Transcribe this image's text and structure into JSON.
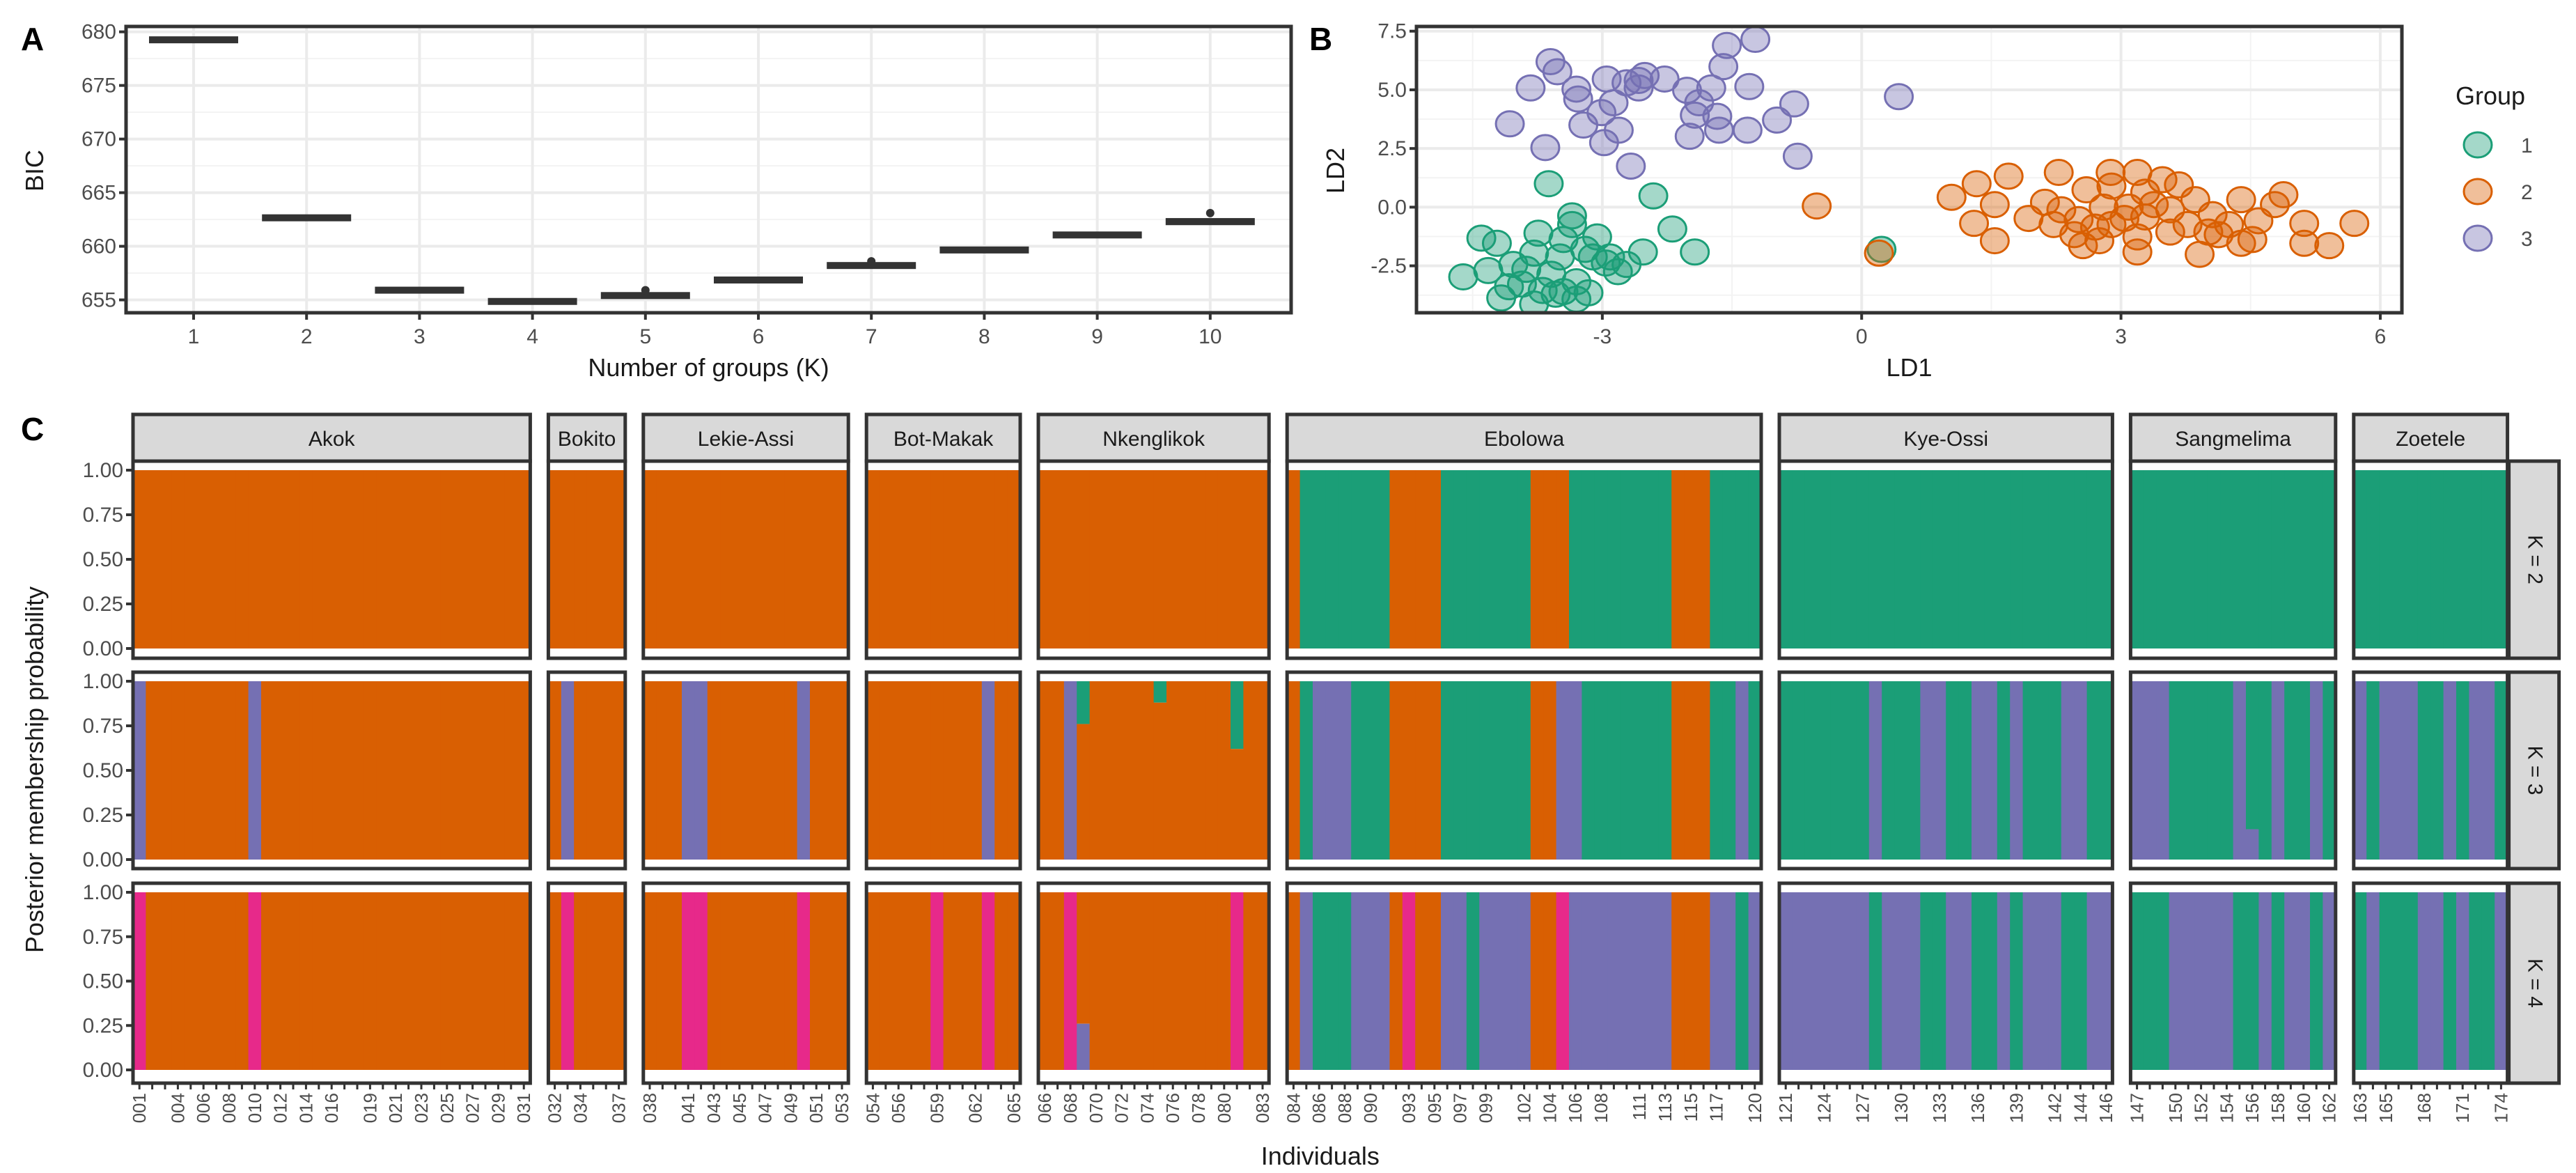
{
  "colors": {
    "c1": "#1B9E77",
    "c2": "#D95F02",
    "c3": "#7570B3",
    "c4": "#E7298A",
    "strip": "#D9D9D9",
    "frame": "#333333",
    "grid": "#EBEBEB"
  },
  "chart_data": [
    {
      "type": "box",
      "panel_label": "A",
      "xlabel": "Number of groups (K)",
      "ylabel": "BIC",
      "ylim": [
        653.8,
        680.5
      ],
      "yticks": [
        655,
        660,
        665,
        670,
        675,
        680
      ],
      "xticks": [
        "1",
        "2",
        "3",
        "4",
        "5",
        "6",
        "7",
        "8",
        "9",
        "10"
      ],
      "grid": true,
      "boxes": [
        {
          "k": "1",
          "median": 679.3,
          "q1": 679.15,
          "q3": 679.45,
          "outliers": []
        },
        {
          "k": "2",
          "median": 662.7,
          "q1": 662.55,
          "q3": 662.85,
          "outliers": []
        },
        {
          "k": "3",
          "median": 655.95,
          "q1": 655.8,
          "q3": 656.1,
          "outliers": []
        },
        {
          "k": "4",
          "median": 654.9,
          "q1": 654.75,
          "q3": 655.05,
          "outliers": []
        },
        {
          "k": "5",
          "median": 655.4,
          "q1": 655.25,
          "q3": 655.6,
          "outliers": [
            655.9
          ]
        },
        {
          "k": "6",
          "median": 656.9,
          "q1": 656.75,
          "q3": 657.05,
          "outliers": []
        },
        {
          "k": "7",
          "median": 658.2,
          "q1": 658.05,
          "q3": 658.4,
          "outliers": [
            658.6
          ]
        },
        {
          "k": "8",
          "median": 659.7,
          "q1": 659.55,
          "q3": 659.85,
          "outliers": []
        },
        {
          "k": "9",
          "median": 661.1,
          "q1": 660.95,
          "q3": 661.25,
          "outliers": []
        },
        {
          "k": "10",
          "median": 662.3,
          "q1": 662.1,
          "q3": 662.5,
          "outliers": [
            663.1
          ]
        }
      ]
    },
    {
      "type": "scatter",
      "panel_label": "B",
      "xlabel": "LD1",
      "ylabel": "LD2",
      "xlim": [
        -5.15,
        6.25
      ],
      "ylim": [
        -4.5,
        7.7
      ],
      "xticks": [
        {
          "v": -3,
          "label": "-3"
        },
        {
          "v": 0,
          "label": "0"
        },
        {
          "v": 3,
          "label": "3"
        },
        {
          "v": 6,
          "label": "6"
        }
      ],
      "yticks": [
        {
          "v": -2.5,
          "label": "-2.5"
        },
        {
          "v": 0,
          "label": "0.0"
        },
        {
          "v": 2.5,
          "label": "2.5"
        },
        {
          "v": 5,
          "label": "5.0"
        },
        {
          "v": 7.5,
          "label": "7.5"
        }
      ],
      "grid": true,
      "legend": {
        "title": "Group",
        "position": "right"
      },
      "groups": [
        {
          "name": "1",
          "color": "#1B9E77",
          "points": [
            [
              -3.62,
              1.0
            ],
            [
              -2.41,
              0.48
            ],
            [
              -2.19,
              -0.93
            ],
            [
              -1.93,
              -1.91
            ],
            [
              -4.4,
              -1.32
            ],
            [
              -4.22,
              -1.54
            ],
            [
              -4.61,
              -2.97
            ],
            [
              -4.17,
              -3.87
            ],
            [
              -3.74,
              -1.11
            ],
            [
              -3.35,
              -0.37
            ],
            [
              -3.35,
              -0.74
            ],
            [
              -3.06,
              -1.27
            ],
            [
              -3.79,
              -1.96
            ],
            [
              -3.49,
              -2.12
            ],
            [
              -4.03,
              -2.44
            ],
            [
              -4.32,
              -2.7
            ],
            [
              -3.93,
              -3.28
            ],
            [
              -3.69,
              -3.55
            ],
            [
              -3.45,
              -3.6
            ],
            [
              -3.16,
              -3.65
            ],
            [
              -3.3,
              -3.18
            ],
            [
              -2.91,
              -2.12
            ],
            [
              -2.82,
              -2.75
            ],
            [
              -2.72,
              -2.44
            ],
            [
              -2.53,
              -1.91
            ],
            [
              -3.11,
              -2.12
            ],
            [
              -3.59,
              -2.86
            ],
            [
              -3.2,
              -1.8
            ],
            [
              -3.45,
              -1.38
            ],
            [
              -3.79,
              -4.13
            ],
            [
              -2.96,
              -2.38
            ],
            [
              -4.08,
              -3.39
            ],
            [
              -3.3,
              -3.92
            ],
            [
              0.23,
              -1.8
            ],
            [
              -3.54,
              -3.71
            ],
            [
              -3.88,
              -2.65
            ]
          ]
        },
        {
          "name": "2",
          "color": "#D95F02",
          "points": [
            [
              -0.52,
              0.05
            ],
            [
              0.2,
              -1.96
            ],
            [
              1.04,
              0.42
            ],
            [
              1.33,
              1.0
            ],
            [
              1.7,
              1.32
            ],
            [
              2.28,
              1.48
            ],
            [
              2.88,
              1.48
            ],
            [
              3.19,
              1.48
            ],
            [
              3.48,
              1.17
            ],
            [
              3.67,
              0.95
            ],
            [
              4.88,
              0.53
            ],
            [
              5.7,
              -0.69
            ],
            [
              5.41,
              -1.64
            ],
            [
              5.12,
              -1.54
            ],
            [
              5.12,
              -0.69
            ],
            [
              4.59,
              -0.58
            ],
            [
              4.39,
              0.32
            ],
            [
              4.39,
              -1.54
            ],
            [
              3.91,
              -2.01
            ],
            [
              4.01,
              -1.06
            ],
            [
              3.19,
              -1.91
            ],
            [
              2.75,
              -1.43
            ],
            [
              2.46,
              -1.17
            ],
            [
              1.93,
              -0.48
            ],
            [
              1.54,
              -1.43
            ],
            [
              1.3,
              -0.69
            ],
            [
              1.54,
              0.11
            ],
            [
              2.12,
              0.21
            ],
            [
              2.6,
              0.74
            ],
            [
              2.8,
              0.0
            ],
            [
              3.09,
              0.0
            ],
            [
              3.28,
              -0.42
            ],
            [
              3.57,
              -0.11
            ],
            [
              3.77,
              -0.74
            ],
            [
              4.06,
              -0.32
            ],
            [
              2.89,
              -0.74
            ],
            [
              2.51,
              -0.53
            ],
            [
              2.31,
              -0.11
            ],
            [
              3.19,
              -1.27
            ],
            [
              3.57,
              -1.06
            ],
            [
              4.25,
              -0.74
            ],
            [
              4.78,
              0.11
            ],
            [
              3.28,
              0.64
            ],
            [
              2.89,
              0.9
            ],
            [
              2.7,
              -0.85
            ],
            [
              2.22,
              -0.74
            ],
            [
              3.86,
              0.32
            ],
            [
              4.52,
              -1.38
            ],
            [
              4.13,
              -1.17
            ],
            [
              3.38,
              0.11
            ],
            [
              2.56,
              -1.64
            ],
            [
              3.04,
              -0.48
            ]
          ]
        },
        {
          "name": "3",
          "color": "#7570B3",
          "points": [
            [
              -3.6,
              6.2
            ],
            [
              -3.52,
              5.77
            ],
            [
              -3.83,
              5.08
            ],
            [
              -4.07,
              3.55
            ],
            [
              -3.66,
              2.54
            ],
            [
              -3.3,
              5.03
            ],
            [
              -3.28,
              4.61
            ],
            [
              -2.95,
              5.46
            ],
            [
              -2.87,
              4.45
            ],
            [
              -3.01,
              4.03
            ],
            [
              -3.22,
              3.5
            ],
            [
              -2.81,
              3.28
            ],
            [
              -2.98,
              2.75
            ],
            [
              -2.67,
              1.75
            ],
            [
              -2.58,
              5.4
            ],
            [
              -2.51,
              5.61
            ],
            [
              -2.28,
              5.46
            ],
            [
              -2.58,
              5.08
            ],
            [
              -2.02,
              4.98
            ],
            [
              -1.74,
              5.08
            ],
            [
              -1.88,
              4.45
            ],
            [
              -1.93,
              3.92
            ],
            [
              -1.67,
              3.87
            ],
            [
              -1.99,
              3.02
            ],
            [
              -1.65,
              3.28
            ],
            [
              -1.32,
              3.28
            ],
            [
              -1.3,
              5.14
            ],
            [
              -0.98,
              3.71
            ],
            [
              -0.78,
              4.4
            ],
            [
              -0.74,
              2.17
            ],
            [
              -1.6,
              5.99
            ],
            [
              -1.56,
              6.89
            ],
            [
              -1.23,
              7.15
            ],
            [
              0.43,
              4.71
            ],
            [
              -2.72,
              5.3
            ]
          ]
        }
      ]
    },
    {
      "type": "bar",
      "stacked": true,
      "panel_label": "C",
      "xlabel": "Individuals",
      "ylabel": "Posterior membership probability",
      "ylim": [
        0,
        1
      ],
      "yticks": [
        {
          "v": 0,
          "label": "0.00"
        },
        {
          "v": 0.25,
          "label": "0.25"
        },
        {
          "v": 0.5,
          "label": "0.50"
        },
        {
          "v": 0.75,
          "label": "0.75"
        },
        {
          "v": 1,
          "label": "1.00"
        }
      ],
      "cluster_key": {
        "G": "#1B9E77",
        "O": "#D95F02",
        "P": "#7570B3",
        "M": "#E7298A"
      },
      "populations": [
        {
          "name": "Akok",
          "first": 1,
          "count": 31,
          "tick_labels": [
            "001",
            "004",
            "006",
            "008",
            "010",
            "012",
            "014",
            "016",
            "019",
            "021",
            "023",
            "025",
            "027",
            "029",
            "031"
          ]
        },
        {
          "name": "Bokito",
          "first": 32,
          "count": 6,
          "tick_labels": [
            "032",
            "034",
            "037"
          ]
        },
        {
          "name": "Lekie-Assi",
          "first": 38,
          "count": 16,
          "tick_labels": [
            "038",
            "041",
            "043",
            "045",
            "047",
            "049",
            "051",
            "053"
          ]
        },
        {
          "name": "Bot-Makak",
          "first": 54,
          "count": 12,
          "tick_labels": [
            "054",
            "056",
            "059",
            "062",
            "065"
          ]
        },
        {
          "name": "Nkenglikok",
          "first": 66,
          "count": 18,
          "tick_labels": [
            "066",
            "068",
            "070",
            "072",
            "074",
            "076",
            "078",
            "080",
            "083"
          ]
        },
        {
          "name": "Ebolowa",
          "first": 84,
          "count": 37,
          "tick_labels": [
            "084",
            "086",
            "088",
            "090",
            "093",
            "095",
            "097",
            "099",
            "102",
            "104",
            "106",
            "108",
            "111",
            "113",
            "115",
            "117",
            "120"
          ]
        },
        {
          "name": "Kye-Ossi",
          "first": 121,
          "count": 26,
          "tick_labels": [
            "121",
            "124",
            "127",
            "130",
            "133",
            "136",
            "139",
            "142",
            "144",
            "146"
          ]
        },
        {
          "name": "Sangmelima",
          "first": 147,
          "count": 16,
          "tick_labels": [
            "147",
            "150",
            "152",
            "154",
            "156",
            "158",
            "160",
            "162"
          ]
        },
        {
          "name": "Zoetele",
          "first": 163,
          "count": 12,
          "tick_labels": [
            "163",
            "165",
            "168",
            "171",
            "174"
          ]
        }
      ],
      "k_rows": [
        {
          "label": "K = 2",
          "bars": [
            "OOOOOOOOOOOOOOOOOOOOOOOOOOOOOOO",
            "OOOOOO",
            "OOOOOOOOOOOOOOOO",
            "OOOOOOOOOOOO",
            "OOOOOOOOOOOOOOOOOO",
            "OGGGGGGGOOOOGGGGGGGOOOGGGGGGGGOOOGGGG",
            "GGGGGGGGGGGGGGGGGGGGGGGGGG",
            "GGGGGGGGGGGGGGGG",
            "GGGGGGGGGGGG"
          ]
        },
        {
          "label": "K = 3",
          "bars": [
            "POOOOOOOOPOOOOOOOOOOOOOOOOOOOOO",
            "OPOOOO",
            "OOOPPOOOOOOOPOOO",
            "OOOOOOOOOPOO",
            "OOPOOOOOOOOOOOOOOO",
            "OGPPPGGGOOOOGGGGGGGOOPPGGGGGGGOOOGGPG",
            "GGGGGGGPGGGPPGGPPGPGGGPPGG",
            "PPPGGGGGPGGPGGPG",
            "PGPPPGGPGPPG"
          ]
        },
        {
          "label": "K = 4",
          "bars": [
            "MOOOOOOOOMOOOOOOOOOOOOOOOOOOOOO",
            "OMOOOO",
            "OOOMMOOOOOOOMOOO",
            "OOOOOMOOOMOO",
            "OOMOOOOOOOOOOOOMOO",
            "OPGGGPPPOMOOPPGPPPPOOMPPPPPPPPOOOPPGP",
            "PPPPPPPGPPPGGPPGGPGPPPGGPP",
            "GGGPPPPPGGPGPPGP",
            "GPGGGPPGPGGP"
          ]
        }
      ],
      "mixed": [
        {
          "row": 1,
          "pop": 4,
          "index": 3,
          "parts": [
            [
              "G",
              0.24
            ],
            [
              "O",
              0.76
            ]
          ]
        },
        {
          "row": 1,
          "pop": 4,
          "index": 9,
          "parts": [
            [
              "G",
              0.12
            ],
            [
              "O",
              0.88
            ]
          ]
        },
        {
          "row": 1,
          "pop": 4,
          "index": 15,
          "parts": [
            [
              "G",
              0.38
            ],
            [
              "O",
              0.62
            ]
          ]
        },
        {
          "row": 1,
          "pop": 7,
          "index": 9,
          "parts": [
            [
              "G",
              0.83
            ],
            [
              "P",
              0.17
            ]
          ]
        },
        {
          "row": 2,
          "pop": 4,
          "index": 3,
          "parts": [
            [
              "O",
              0.74
            ],
            [
              "P",
              0.26
            ]
          ]
        }
      ]
    }
  ]
}
